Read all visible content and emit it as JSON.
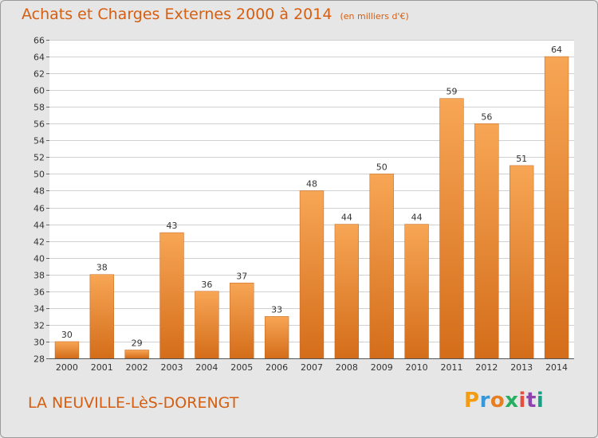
{
  "title": "Achats et Charges Externes 2000 à 2014",
  "unit_label": "(en milliers d'€)",
  "commune": "LA NEUVILLE-LèS-DORENGT",
  "brand": {
    "text": "Proxiti",
    "colors": [
      "#f39c12",
      "#3498db",
      "#e67e22",
      "#27ae60",
      "#e74c3c",
      "#8e44ad",
      "#16a085"
    ]
  },
  "colors": {
    "bar_light": "#f7a655",
    "bar_dark": "#d46d1a",
    "accent": "#d65e10"
  },
  "chart_data": {
    "type": "bar",
    "categories": [
      "2000",
      "2001",
      "2002",
      "2003",
      "2004",
      "2005",
      "2006",
      "2007",
      "2008",
      "2009",
      "2010",
      "2011",
      "2012",
      "2013",
      "2014"
    ],
    "values": [
      30,
      38,
      29,
      43,
      36,
      37,
      33,
      48,
      44,
      50,
      44,
      59,
      56,
      51,
      64
    ],
    "ylim": [
      28,
      66
    ],
    "yticks": [
      28,
      30,
      32,
      34,
      36,
      38,
      40,
      42,
      44,
      46,
      48,
      50,
      52,
      54,
      56,
      58,
      60,
      62,
      64,
      66
    ],
    "grid": true,
    "title": "Achats et Charges Externes 2000 à 2014",
    "xlabel": "",
    "ylabel": ""
  }
}
